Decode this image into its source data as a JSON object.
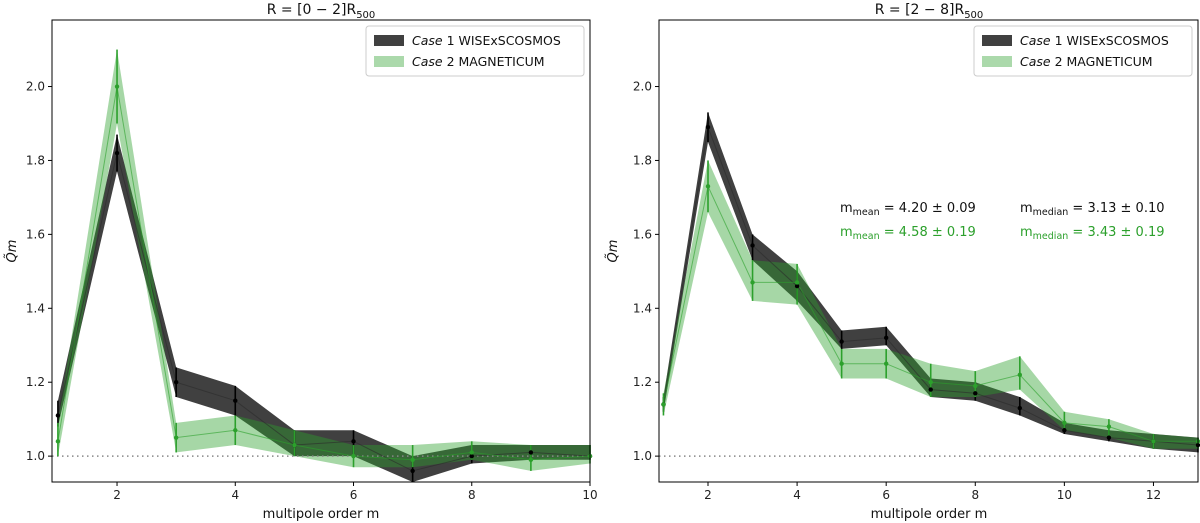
{
  "chart_data": [
    {
      "type": "area",
      "title": "R = [0 − 2]R",
      "title_sub": "500",
      "xlabel": "multipole order m",
      "ylabel": "Q̃m",
      "xlim": [
        0.9,
        10
      ],
      "ylim": [
        0.93,
        2.18
      ],
      "xticks": [
        2,
        4,
        6,
        8,
        10
      ],
      "yticks": [
        1.0,
        1.2,
        1.4,
        1.6,
        1.8,
        2.0
      ],
      "reference_line": 1.0,
      "legend_position": "top-right",
      "series": [
        {
          "name": "Case 1 WISExSCOSMOS",
          "legend_italic": "Case",
          "legend_rest": " 1 WISExSCOSMOS",
          "color": "#2b2b2b",
          "x": [
            1,
            2,
            3,
            4,
            5,
            6,
            7,
            8,
            9,
            10
          ],
          "y": [
            1.11,
            1.82,
            1.2,
            1.15,
            1.03,
            1.04,
            0.96,
            1.0,
            1.01,
            1.0
          ],
          "lower": [
            1.08,
            1.77,
            1.16,
            1.11,
            1.0,
            1.0,
            0.93,
            0.98,
            0.99,
            0.99
          ],
          "upper": [
            1.15,
            1.87,
            1.24,
            1.19,
            1.07,
            1.07,
            1.0,
            1.03,
            1.03,
            1.03
          ]
        },
        {
          "name": "Case 2 MAGNETICUM",
          "legend_italic": "Case",
          "legend_rest": " 2 MAGNETICUM",
          "color": "#2ca02c",
          "x": [
            1,
            2,
            3,
            4,
            5,
            6,
            7,
            8,
            9,
            10
          ],
          "y": [
            1.04,
            2.0,
            1.05,
            1.07,
            1.03,
            1.0,
            0.99,
            1.01,
            0.99,
            1.0
          ],
          "lower": [
            1.0,
            1.9,
            1.01,
            1.03,
            1.0,
            0.97,
            0.97,
            0.99,
            0.96,
            0.98
          ],
          "upper": [
            1.09,
            2.1,
            1.09,
            1.11,
            1.07,
            1.03,
            1.03,
            1.04,
            1.03,
            1.03
          ]
        }
      ]
    },
    {
      "type": "area",
      "title": "R = [2 − 8]R",
      "title_sub": "500",
      "xlabel": "multipole order m",
      "ylabel": "Q̃m",
      "xlim": [
        0.9,
        13
      ],
      "ylim": [
        0.93,
        2.18
      ],
      "xticks": [
        2,
        4,
        6,
        8,
        10,
        12
      ],
      "yticks": [
        1.0,
        1.2,
        1.4,
        1.6,
        1.8,
        2.0
      ],
      "reference_line": 1.0,
      "legend_position": "top-right",
      "series": [
        {
          "name": "Case 1 WISExSCOSMOS",
          "legend_italic": "Case",
          "legend_rest": " 1 WISExSCOSMOS",
          "color": "#2b2b2b",
          "x": [
            1,
            2,
            3,
            4,
            5,
            6,
            7,
            8,
            9,
            10,
            11,
            12,
            13
          ],
          "y": [
            1.14,
            1.89,
            1.57,
            1.46,
            1.31,
            1.32,
            1.18,
            1.17,
            1.13,
            1.07,
            1.05,
            1.04,
            1.03
          ],
          "lower": [
            1.12,
            1.85,
            1.53,
            1.42,
            1.29,
            1.3,
            1.16,
            1.15,
            1.11,
            1.06,
            1.04,
            1.02,
            1.01
          ],
          "upper": [
            1.16,
            1.93,
            1.6,
            1.5,
            1.34,
            1.35,
            1.21,
            1.2,
            1.16,
            1.09,
            1.07,
            1.06,
            1.05
          ]
        },
        {
          "name": "Case 2 MAGNETICUM",
          "legend_italic": "Case",
          "legend_rest": " 2 MAGNETICUM",
          "color": "#2ca02c",
          "x": [
            1,
            2,
            3,
            4,
            5,
            6,
            7,
            8,
            9,
            10,
            11,
            12,
            13
          ],
          "y": [
            1.14,
            1.73,
            1.47,
            1.47,
            1.25,
            1.25,
            1.2,
            1.19,
            1.22,
            1.09,
            1.08,
            1.04,
            1.04
          ],
          "lower": [
            1.11,
            1.66,
            1.42,
            1.41,
            1.21,
            1.21,
            1.16,
            1.16,
            1.18,
            1.07,
            1.05,
            1.02,
            1.02
          ],
          "upper": [
            1.17,
            1.8,
            1.53,
            1.52,
            1.29,
            1.29,
            1.25,
            1.23,
            1.27,
            1.12,
            1.1,
            1.06,
            1.05
          ]
        }
      ],
      "annotations": [
        {
          "label": "m",
          "sub": "mean",
          "text": " =  4.20 ± 0.09",
          "color": "#111111"
        },
        {
          "label": "m",
          "sub": "median",
          "text": " =  3.13 ± 0.10",
          "color": "#111111"
        },
        {
          "label": "m",
          "sub": "mean",
          "text": " =  4.58 ± 0.19",
          "color": "#2ca02c"
        },
        {
          "label": "m",
          "sub": "median",
          "text": " =  3.43 ± 0.19",
          "color": "#2ca02c"
        }
      ]
    }
  ]
}
